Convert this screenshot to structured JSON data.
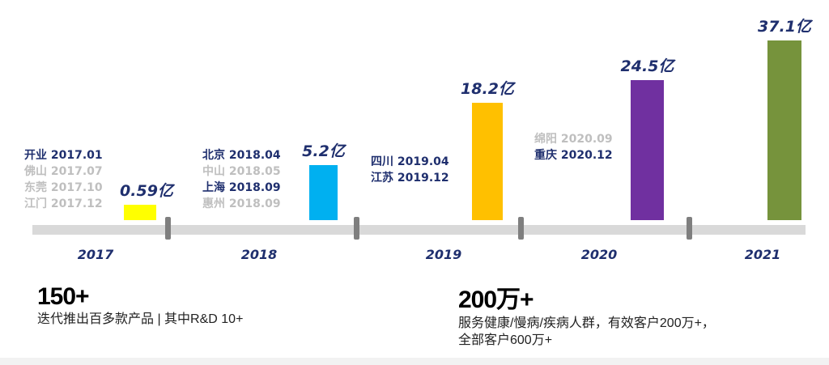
{
  "chart_data": {
    "type": "bar",
    "categories": [
      "2017",
      "2018",
      "2019",
      "2020",
      "2021"
    ],
    "values": [
      0.59,
      5.2,
      18.2,
      24.5,
      37.1
    ],
    "value_labels": [
      "0.59亿",
      "5.2亿",
      "18.2亿",
      "24.5亿",
      "37.1亿"
    ],
    "colors": [
      "#ffff00",
      "#00b0f0",
      "#ffc000",
      "#7030a0",
      "#76933c"
    ],
    "title": "",
    "xlabel": "",
    "ylabel": "亿"
  },
  "events": [
    [
      {
        "city": "开业 2017.01",
        "emph": true
      },
      {
        "city": "佛山 2017.07",
        "emph": false
      },
      {
        "city": "东莞 2017.10",
        "emph": false
      },
      {
        "city": "江门 2017.12",
        "emph": false
      }
    ],
    [
      {
        "city": "北京 2018.04",
        "emph": true
      },
      {
        "city": "中山 2018.05",
        "emph": false
      },
      {
        "city": "上海 2018.09",
        "emph": true
      },
      {
        "city": "惠州 2018.09",
        "emph": false
      }
    ],
    [
      {
        "city": "四川 2019.04",
        "emph": true
      },
      {
        "city": "江苏 2019.12",
        "emph": true
      }
    ],
    [
      {
        "city": "绵阳 2020.09",
        "emph": false
      },
      {
        "city": "重庆 2020.12",
        "emph": true
      }
    ]
  ],
  "stats": [
    {
      "big": "150+",
      "desc": [
        "迭代推出百多款产品 | 其中R&D 10+"
      ]
    },
    {
      "big": "200万+",
      "desc": [
        "服务健康/慢病/疾病人群，有效客户200万+，",
        "全部客户600万+"
      ]
    }
  ]
}
